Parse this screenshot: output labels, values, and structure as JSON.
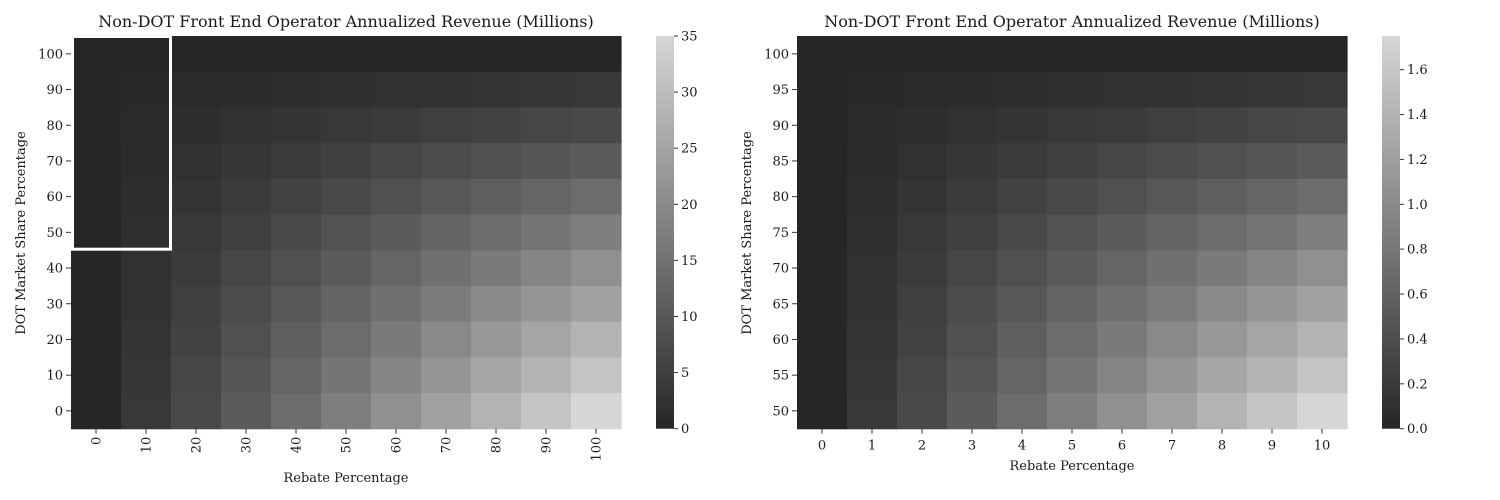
{
  "chart_data": [
    {
      "type": "heatmap",
      "title": "Non-DOT Front End Operator Annualized Revenue (Millions)",
      "xlabel": "Rebate Percentage",
      "ylabel": "DOT Market Share Percentage",
      "x_ticks": [
        "0",
        "10",
        "20",
        "30",
        "40",
        "50",
        "60",
        "70",
        "80",
        "90",
        "100"
      ],
      "x_tick_rotation": 90,
      "y_ticks": [
        "100",
        "90",
        "80",
        "70",
        "60",
        "50",
        "40",
        "30",
        "20",
        "10",
        "0"
      ],
      "values": [
        [
          0.0,
          0.0,
          0.0,
          0.0,
          0.0,
          0.0,
          0.0,
          0.0,
          0.0,
          0.0,
          0.0
        ],
        [
          0.0,
          0.35,
          0.7,
          1.05,
          1.4,
          1.75,
          2.1,
          2.45,
          2.8,
          3.15,
          3.5
        ],
        [
          0.0,
          0.7,
          1.4,
          2.1,
          2.8,
          3.5,
          4.2,
          4.9,
          5.6,
          6.3,
          7.0
        ],
        [
          0.0,
          1.05,
          2.1,
          3.15,
          4.2,
          5.25,
          6.3,
          7.35,
          8.4,
          9.45,
          10.5
        ],
        [
          0.0,
          1.4,
          2.8,
          4.2,
          5.6,
          7.0,
          8.4,
          9.8,
          11.2,
          12.6,
          14.0
        ],
        [
          0.0,
          1.75,
          3.5,
          5.25,
          7.0,
          8.75,
          10.5,
          12.25,
          14.0,
          15.75,
          17.5
        ],
        [
          0.0,
          2.1,
          4.2,
          6.3,
          8.4,
          10.5,
          12.6,
          14.7,
          16.8,
          18.9,
          21.0
        ],
        [
          0.0,
          2.45,
          4.9,
          7.35,
          9.8,
          12.25,
          14.7,
          17.15,
          19.6,
          22.05,
          24.5
        ],
        [
          0.0,
          2.8,
          5.6,
          8.4,
          11.2,
          14.0,
          16.8,
          19.6,
          22.4,
          25.2,
          28.0
        ],
        [
          0.0,
          3.15,
          6.3,
          9.45,
          12.6,
          15.75,
          18.9,
          22.05,
          25.2,
          28.35,
          31.5
        ],
        [
          0.0,
          3.5,
          7.0,
          10.5,
          14.0,
          17.5,
          21.0,
          24.5,
          28.0,
          31.5,
          35.0
        ]
      ],
      "vmin": 0,
      "vmax": 35,
      "colorbar_ticks": [
        0,
        5,
        10,
        15,
        20,
        25,
        30,
        35
      ],
      "colormap": {
        "low": "#262626",
        "high": "#d6d6d6"
      },
      "highlight": {
        "x_ticks": [
          "0",
          "10"
        ],
        "y_ticks": [
          "100",
          "50"
        ],
        "color": "#ffffff"
      }
    },
    {
      "type": "heatmap",
      "title": "Non-DOT Front End Operator Annualized Revenue (Millions)",
      "xlabel": "Rebate Percentage",
      "ylabel": "DOT Market Share Percentage",
      "x_ticks": [
        "0",
        "1",
        "2",
        "3",
        "4",
        "5",
        "6",
        "7",
        "8",
        "9",
        "10"
      ],
      "x_tick_rotation": 0,
      "y_ticks": [
        "100",
        "95",
        "90",
        "85",
        "80",
        "75",
        "70",
        "65",
        "60",
        "55",
        "50"
      ],
      "values": [
        [
          0.0,
          0.0,
          0.0,
          0.0,
          0.0,
          0.0,
          0.0,
          0.0,
          0.0,
          0.0,
          0.0
        ],
        [
          0.0,
          0.0175,
          0.035,
          0.0525,
          0.07,
          0.0875,
          0.105,
          0.1225,
          0.14,
          0.1575,
          0.175
        ],
        [
          0.0,
          0.035,
          0.07,
          0.105,
          0.14,
          0.175,
          0.21,
          0.245,
          0.28,
          0.315,
          0.35
        ],
        [
          0.0,
          0.0525,
          0.105,
          0.1575,
          0.21,
          0.2625,
          0.315,
          0.3675,
          0.42,
          0.4725,
          0.525
        ],
        [
          0.0,
          0.07,
          0.14,
          0.21,
          0.28,
          0.35,
          0.42,
          0.49,
          0.56,
          0.63,
          0.7
        ],
        [
          0.0,
          0.0875,
          0.175,
          0.2625,
          0.35,
          0.4375,
          0.525,
          0.6125,
          0.7,
          0.7875,
          0.875
        ],
        [
          0.0,
          0.105,
          0.21,
          0.315,
          0.42,
          0.525,
          0.63,
          0.735,
          0.84,
          0.945,
          1.05
        ],
        [
          0.0,
          0.1225,
          0.245,
          0.3675,
          0.49,
          0.6125,
          0.735,
          0.8575,
          0.98,
          1.1025,
          1.225
        ],
        [
          0.0,
          0.14,
          0.28,
          0.42,
          0.56,
          0.7,
          0.84,
          0.98,
          1.12,
          1.26,
          1.4
        ],
        [
          0.0,
          0.1575,
          0.315,
          0.4725,
          0.63,
          0.7875,
          0.945,
          1.1025,
          1.26,
          1.4175,
          1.575
        ],
        [
          0.0,
          0.175,
          0.35,
          0.525,
          0.7,
          0.875,
          1.05,
          1.225,
          1.4,
          1.575,
          1.75
        ]
      ],
      "vmin": 0,
      "vmax": 1.75,
      "colorbar_ticks": [
        "0.0",
        "0.2",
        "0.4",
        "0.6",
        "0.8",
        "1.0",
        "1.2",
        "1.4",
        "1.6"
      ],
      "colormap": {
        "low": "#262626",
        "high": "#d6d6d6"
      }
    }
  ]
}
